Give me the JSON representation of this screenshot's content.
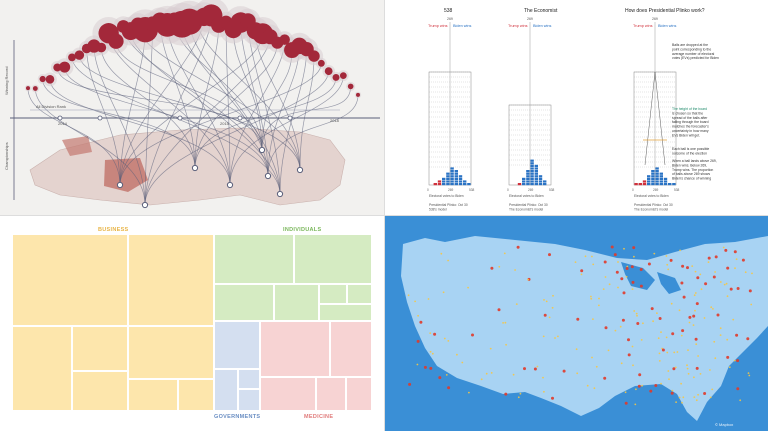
{
  "panel_bubble": {
    "axis_left_top": "Winning Record",
    "axis_left_bottom": "Championships",
    "label_mid": "All Division Rank",
    "year_labels": [
      "2014",
      "2015",
      "2018"
    ],
    "colors": {
      "bubble": "#a3283a",
      "halo": "#d9cdd2",
      "line": "#5a5f7a",
      "map": "#e4d3cf",
      "map_accent": "#c3776f"
    }
  },
  "panel_plinko": {
    "boards": [
      {
        "title": "538",
        "caption": [
          "Electoral votes to Biden",
          "",
          "Presidential Plinko: Oct 30",
          "538's model"
        ]
      },
      {
        "title": "The Economist",
        "caption": [
          "Electoral votes to Biden",
          "",
          "Presidential Plinko: Oct 30",
          "The Economist's model"
        ]
      },
      {
        "title": "How does Presidential Plinko work?",
        "caption": [
          "Electoral votes to Biden",
          "",
          "Presidential Plinko: Oct 30",
          "The Economist's model"
        ]
      }
    ],
    "center_value": "269",
    "trump_label": "Trump wins",
    "biden_label": "Biden wins",
    "x_ticks": [
      "0",
      "269",
      "538"
    ],
    "explain": [
      "Balls are dropped at the",
      "point corresponding to the",
      "average number of electoral",
      "votes (EVs) predicted for Biden"
    ],
    "explain2": [
      "The height of the board",
      "is chosen so that the",
      "spread of the balls after",
      "falling through the board",
      "matches the forecaster's",
      "uncertainty in how many",
      "EVs Biden will get."
    ],
    "explain3": [
      "Each ball is one possible",
      "outcome of the election"
    ],
    "explain4": [
      "When a ball lands above 269,",
      "Biden wins. Below 269,",
      "Trump wins. The proportion",
      "of balls above 269 shows",
      "Biden's chance of winning"
    ],
    "colors": {
      "trump": "#d0313c",
      "biden": "#2a73c4",
      "guide": "#e2a23c"
    }
  },
  "panel_treemap": {
    "categories": [
      {
        "name": "BUSINESS",
        "color": "#fde6ac",
        "title_color": "#e8b548"
      },
      {
        "name": "INDIVIDUALS",
        "color": "#d5ebc2",
        "title_color": "#7ab75b"
      },
      {
        "name": "GOVERNMENTS",
        "color": "#d4dff0",
        "title_color": "#6a8ec3"
      },
      {
        "name": "MEDICINE",
        "color": "#f7d3d3",
        "title_color": "#e07b7b"
      }
    ]
  },
  "panel_map": {
    "colors": {
      "land": "#a8d3f3",
      "water": "#3a8fd6",
      "hot": "#e03a2a",
      "warm": "#f6c744"
    },
    "attribution": "© Mapbox"
  }
}
